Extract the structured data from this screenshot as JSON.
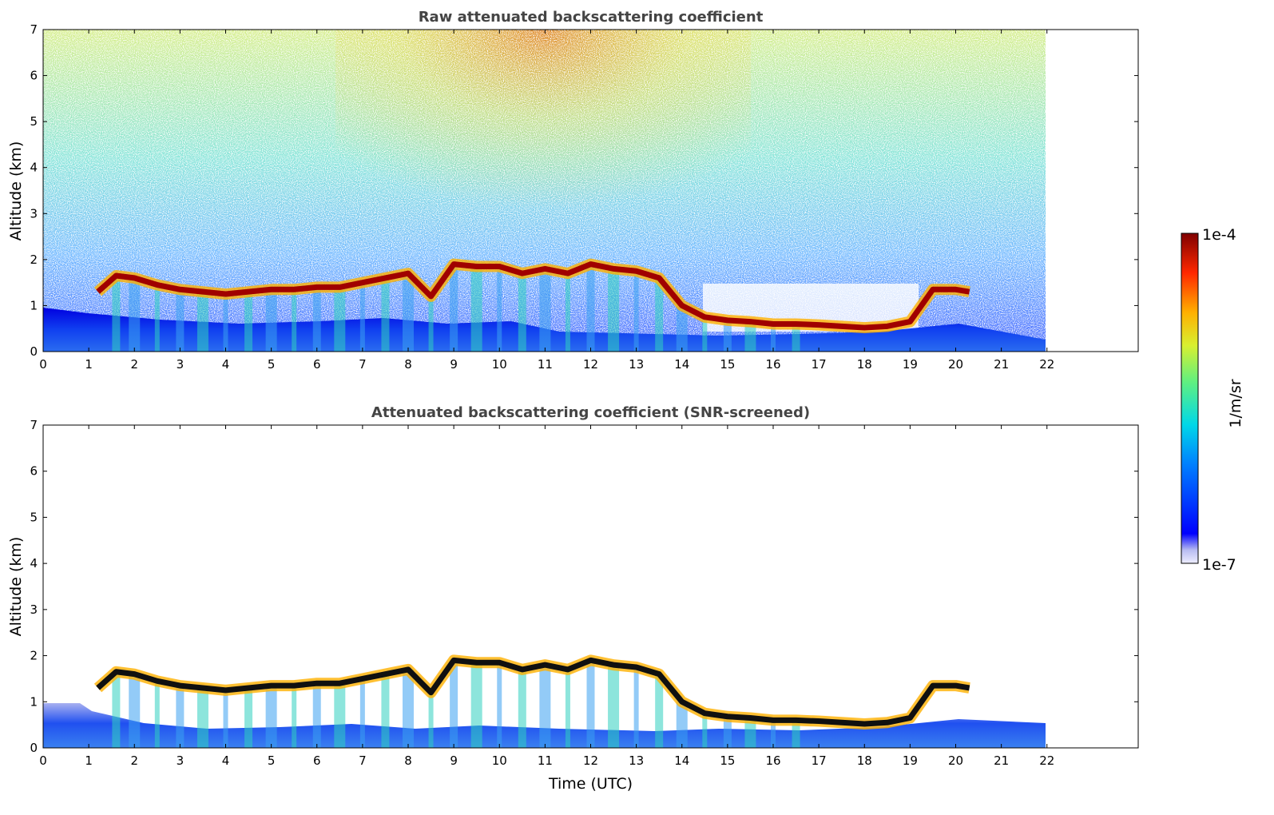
{
  "chart_data": [
    {
      "type": "heatmap",
      "title": "Raw attenuated backscattering coefficient",
      "xlabel": "",
      "ylabel": "Altitude (km)",
      "xlim": [
        0,
        24
      ],
      "ylim": [
        0,
        7
      ],
      "data_x_range": [
        0,
        22
      ],
      "xticks": [
        0,
        1,
        2,
        3,
        4,
        5,
        6,
        7,
        8,
        9,
        10,
        11,
        12,
        13,
        14,
        15,
        16,
        17,
        18,
        19,
        20,
        21,
        22
      ],
      "yticks": [
        0,
        1,
        2,
        3,
        4,
        5,
        6,
        7
      ],
      "grid": false,
      "features": {
        "cloud_layer": {
          "description": "strong aerosol/cloud layer top (km) vs time (UTC)",
          "x": [
            1.2,
            1.6,
            2.0,
            2.5,
            3.0,
            3.5,
            4.0,
            4.5,
            5.0,
            5.5,
            6.0,
            6.5,
            7.0,
            7.5,
            8.0,
            8.5,
            9.0,
            9.5,
            10.0,
            10.5,
            11.0,
            11.5,
            12.0,
            12.5,
            13.0,
            13.5,
            14.0,
            14.5,
            15.0,
            15.5,
            16.0,
            16.5,
            17.0,
            17.5,
            18.0,
            18.5,
            19.0,
            19.5,
            20.0,
            20.3
          ],
          "y": [
            1.3,
            1.65,
            1.6,
            1.45,
            1.35,
            1.3,
            1.25,
            1.3,
            1.35,
            1.35,
            1.4,
            1.4,
            1.5,
            1.6,
            1.7,
            1.2,
            1.9,
            1.85,
            1.85,
            1.7,
            1.8,
            1.7,
            1.9,
            1.8,
            1.75,
            1.6,
            1.0,
            0.75,
            0.68,
            0.65,
            0.6,
            0.6,
            0.58,
            0.55,
            0.52,
            0.55,
            0.65,
            1.35,
            1.35,
            1.3
          ]
        },
        "boundary_layer_top_km": 0.85,
        "noise_gradient": "signal noise increases with altitude, maximum near 10-11 UTC above 5 km"
      }
    },
    {
      "type": "heatmap",
      "title": "Attenuated backscattering coefficient (SNR-screened)",
      "xlabel": "Time (UTC)",
      "ylabel": "Altitude (km)",
      "xlim": [
        0,
        24
      ],
      "ylim": [
        0,
        7
      ],
      "data_x_range": [
        0,
        22
      ],
      "xticks": [
        0,
        1,
        2,
        3,
        4,
        5,
        6,
        7,
        8,
        9,
        10,
        11,
        12,
        13,
        14,
        15,
        16,
        17,
        18,
        19,
        20,
        21,
        22
      ],
      "yticks": [
        0,
        1,
        2,
        3,
        4,
        5,
        6,
        7
      ],
      "grid": false,
      "features": {
        "cloud_layer": {
          "description": "same layer after SNR screening; values above ~2 km removed",
          "x": [
            1.2,
            1.6,
            2.0,
            2.5,
            3.0,
            3.5,
            4.0,
            4.5,
            5.0,
            5.5,
            6.0,
            6.5,
            7.0,
            7.5,
            8.0,
            8.5,
            9.0,
            9.5,
            10.0,
            10.5,
            11.0,
            11.5,
            12.0,
            12.5,
            13.0,
            13.5,
            14.0,
            14.5,
            15.0,
            15.5,
            16.0,
            16.5,
            17.0,
            17.5,
            18.0,
            18.5,
            19.0,
            19.5,
            20.0,
            20.3
          ],
          "y": [
            1.3,
            1.65,
            1.6,
            1.45,
            1.35,
            1.3,
            1.25,
            1.3,
            1.35,
            1.35,
            1.4,
            1.4,
            1.5,
            1.6,
            1.7,
            1.2,
            1.9,
            1.85,
            1.85,
            1.7,
            1.8,
            1.7,
            1.9,
            1.8,
            1.75,
            1.6,
            1.0,
            0.75,
            0.68,
            0.65,
            0.6,
            0.6,
            0.58,
            0.55,
            0.52,
            0.55,
            0.65,
            1.35,
            1.35,
            1.3
          ]
        },
        "screened_max_altitude_km": 2.0
      }
    }
  ],
  "colorbar": {
    "label": "1/m/sr",
    "max_label": "1e-4",
    "min_label": "1e-7",
    "scale": "log",
    "range": [
      1e-07,
      0.0001
    ],
    "colormap": "jet"
  },
  "colors": {
    "title": "#444444",
    "frame": "#000000",
    "background": "#ffffff"
  }
}
